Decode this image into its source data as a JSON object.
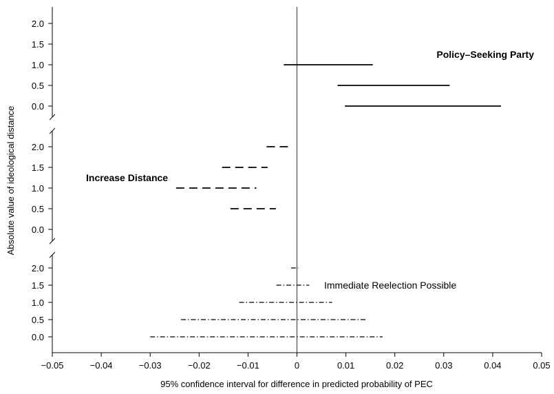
{
  "chart_data": {
    "type": "interval",
    "xlabel": "95% confidence interval for difference in predicted probability of PEC",
    "ylabel": "Absolute value of ideological distance",
    "xlim": [
      -0.05,
      0.05
    ],
    "x_ticks": [
      "−0.05",
      "−0.04",
      "−0.03",
      "−0.02",
      "−0.01",
      "0",
      "0.01",
      "0.02",
      "0.03",
      "0.04",
      "0.05"
    ],
    "x_tick_values": [
      -0.05,
      -0.04,
      -0.03,
      -0.02,
      -0.01,
      0,
      0.01,
      0.02,
      0.03,
      0.04,
      0.05
    ],
    "reference_line_x": 0,
    "panels": [
      {
        "annotation": "Policy–Seeking Party",
        "annotation_bold": true,
        "line_style": "solid",
        "y_ticks": [
          "2.0",
          "1.5",
          "1.0",
          "0.5",
          "0.0"
        ],
        "intervals": [
          {
            "y": "1.0",
            "low": -0.0027,
            "high": 0.0155
          },
          {
            "y": "0.5",
            "low": 0.0083,
            "high": 0.0312
          },
          {
            "y": "0.0",
            "low": 0.0098,
            "high": 0.0417
          }
        ]
      },
      {
        "annotation": "Increase Distance",
        "annotation_bold": true,
        "line_style": "dashed",
        "y_ticks": [
          "2.0",
          "1.5",
          "1.0",
          "0.5",
          "0.0"
        ],
        "intervals": [
          {
            "y": "2.0",
            "low": -0.0062,
            "high": -0.0018
          },
          {
            "y": "1.5",
            "low": -0.0153,
            "high": -0.006
          },
          {
            "y": "1.0",
            "low": -0.0247,
            "high": -0.0083
          },
          {
            "y": "0.5",
            "low": -0.0136,
            "high": -0.0043
          }
        ]
      },
      {
        "annotation": "Immediate Reelection Possible",
        "annotation_bold": false,
        "line_style": "dashdot",
        "y_ticks": [
          "2.0",
          "1.5",
          "1.0",
          "0.5",
          "0.0"
        ],
        "intervals": [
          {
            "y": "2.0",
            "low": -0.0012,
            "high": 0.0003
          },
          {
            "y": "1.5",
            "low": -0.0042,
            "high": 0.0025
          },
          {
            "y": "1.0",
            "low": -0.0118,
            "high": 0.0072
          },
          {
            "y": "0.5",
            "low": -0.0237,
            "high": 0.0143
          },
          {
            "y": "0.0",
            "low": -0.03,
            "high": 0.0175
          }
        ]
      }
    ]
  }
}
